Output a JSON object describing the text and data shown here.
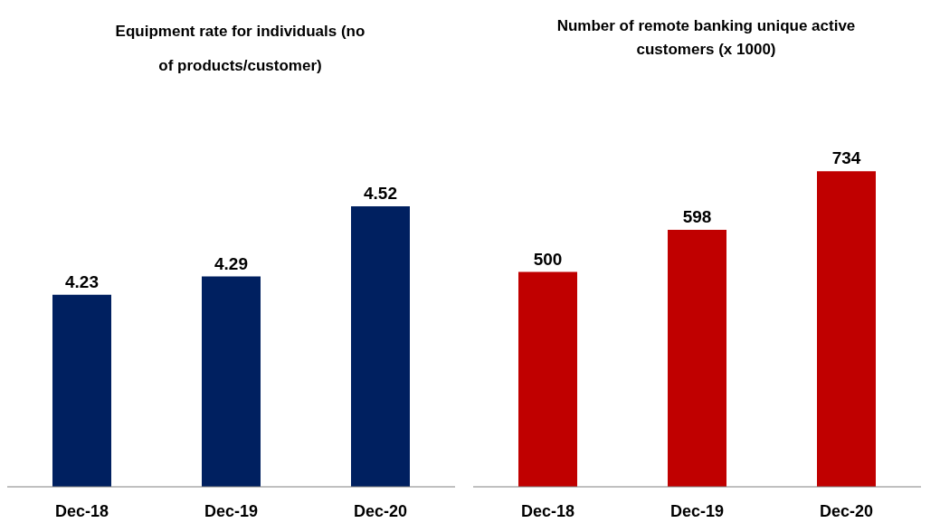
{
  "chart_data": [
    {
      "type": "bar",
      "title": "Equipment rate for individuals (no of products/customer)",
      "categories": [
        "Dec-18",
        "Dec-19",
        "Dec-20"
      ],
      "values": [
        4.23,
        4.29,
        4.52
      ],
      "color": "#002060",
      "ylim": [
        3.6,
        4.52
      ],
      "data_labels": true,
      "tick_labels": "x",
      "grid": false,
      "legend": false
    },
    {
      "type": "bar",
      "title": "Number of remote banking unique active customers (x 1000)",
      "categories": [
        "Dec-18",
        "Dec-19",
        "Dec-20"
      ],
      "values": [
        500,
        598,
        734
      ],
      "color": "#c00000",
      "data_labels": true,
      "tick_labels": "x",
      "grid": false,
      "legend": false
    }
  ]
}
